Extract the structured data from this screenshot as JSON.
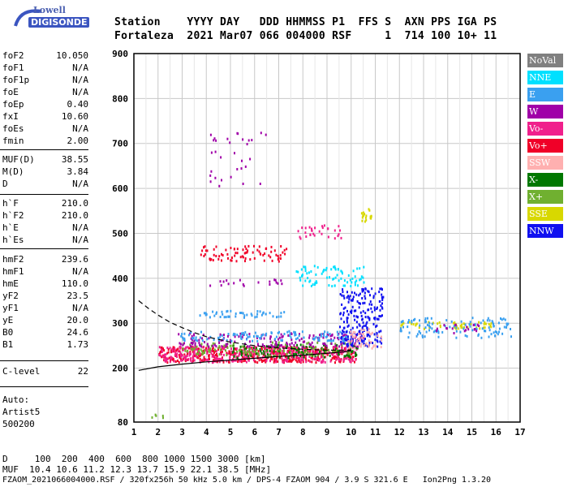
{
  "logo": {
    "top": "Lowell",
    "bottom": "DIGISONDE"
  },
  "header": {
    "line1": "Station    YYYY DAY   DDD HHMMSS P1  FFS S  AXN PPS IGA PS",
    "line2": "Fortaleza  2021 Mar07 066 004000 RSF     1  714 100 10+ 11"
  },
  "params": [
    {
      "name": "foF2",
      "value": "10.050"
    },
    {
      "name": "foF1",
      "value": "N/A"
    },
    {
      "name": "foF1p",
      "value": "N/A"
    },
    {
      "name": "foE",
      "value": "N/A"
    },
    {
      "name": "foEp",
      "value": "0.40"
    },
    {
      "name": "fxI",
      "value": "10.60"
    },
    {
      "name": "foEs",
      "value": "N/A"
    },
    {
      "name": "fmin",
      "value": "2.00"
    },
    {
      "name": "MUF(D)",
      "value": "38.55"
    },
    {
      "name": "M(D)",
      "value": "3.84"
    },
    {
      "name": "D",
      "value": "N/A"
    },
    {
      "name": "h`F",
      "value": "210.0"
    },
    {
      "name": "h`F2",
      "value": "210.0"
    },
    {
      "name": "h`E",
      "value": "N/A"
    },
    {
      "name": "h`Es",
      "value": "N/A"
    },
    {
      "name": "hmF2",
      "value": "239.6"
    },
    {
      "name": "hmF1",
      "value": "N/A"
    },
    {
      "name": "hmE",
      "value": "110.0"
    },
    {
      "name": "yF2",
      "value": "23.5"
    },
    {
      "name": "yF1",
      "value": "N/A"
    },
    {
      "name": "yE",
      "value": "20.0"
    },
    {
      "name": "B0",
      "value": "24.6"
    },
    {
      "name": "B1",
      "value": "1.73"
    },
    {
      "name": "C-level",
      "value": "22"
    }
  ],
  "auto": {
    "line1": "Auto:",
    "line2": "Artist5",
    "line3": "500200"
  },
  "legend": [
    {
      "label": "NoVal",
      "color": "#808080"
    },
    {
      "label": "NNE",
      "color": "#00e0ff"
    },
    {
      "label": "E",
      "color": "#3aa0f0"
    },
    {
      "label": "W",
      "color": "#a000a8"
    },
    {
      "label": "Vo-",
      "color": "#f0208c"
    },
    {
      "label": "Vo+",
      "color": "#f00028"
    },
    {
      "label": "SSW",
      "color": "#ffb0b0"
    },
    {
      "label": "X-",
      "color": "#007800"
    },
    {
      "label": "X+",
      "color": "#70b030"
    },
    {
      "label": "SSE",
      "color": "#d8d800"
    },
    {
      "label": "NNW",
      "color": "#1010f0"
    }
  ],
  "footer": {
    "d_row": "D     100  200  400  600  800 1000 1500 3000 [km]",
    "muf_row": "MUF  10.4 10.6 11.2 12.3 13.7 15.9 22.1 38.5 [MHz]",
    "file_row": "FZAOM_2021066004000.RSF / 320fx256h 50 kHz 5.0 km / DPS-4 FZAOM 904 / 3.9 S 321.6 E   Ion2Png 1.3.20"
  },
  "chart_data": {
    "type": "scatter",
    "title": "",
    "xlabel": "",
    "ylabel": "",
    "xlim": [
      1,
      17
    ],
    "ylim": [
      80,
      900
    ],
    "x_ticks": [
      1,
      2,
      3,
      4,
      5,
      6,
      7,
      8,
      9,
      10,
      11,
      12,
      13,
      14,
      15,
      16,
      17
    ],
    "y_ticks": [
      80,
      200,
      300,
      400,
      500,
      600,
      700,
      800,
      900
    ],
    "grid": true,
    "legend_position": "right",
    "clusters": [
      {
        "series": "Vo+",
        "x_range": [
          2.0,
          10.2
        ],
        "h_range": [
          215,
          250
        ],
        "density": 0.9
      },
      {
        "series": "Vo-",
        "x_range": [
          2.0,
          10.2
        ],
        "h_range": [
          215,
          250
        ],
        "density": 0.7
      },
      {
        "series": "X-",
        "x_range": [
          5.0,
          10.3
        ],
        "h_range": [
          225,
          255
        ],
        "density": 0.4
      },
      {
        "series": "X+",
        "x_range": [
          3.0,
          10.0
        ],
        "h_range": [
          230,
          260
        ],
        "density": 0.3
      },
      {
        "series": "W",
        "x_range": [
          2.8,
          10.5
        ],
        "h_range": [
          250,
          280
        ],
        "density": 0.4
      },
      {
        "series": "E",
        "x_range": [
          2.8,
          10.0
        ],
        "h_range": [
          262,
          285
        ],
        "density": 0.4
      },
      {
        "series": "NNW",
        "x_range": [
          9.5,
          11.3
        ],
        "h_range": [
          250,
          380
        ],
        "density": 0.5
      },
      {
        "series": "SSW",
        "x_range": [
          9.8,
          11.3
        ],
        "h_range": [
          245,
          290
        ],
        "density": 0.4
      },
      {
        "series": "E",
        "x_range": [
          3.7,
          7.2
        ],
        "h_range": [
          315,
          330
        ],
        "density": 0.5
      },
      {
        "series": "NNE",
        "x_range": [
          7.7,
          10.5
        ],
        "h_range": [
          385,
          430
        ],
        "density": 0.35
      },
      {
        "series": "W",
        "x_range": [
          3.7,
          7.2
        ],
        "h_range": [
          385,
          400
        ],
        "density": 0.2
      },
      {
        "series": "Vo+",
        "x_range": [
          3.7,
          7.3
        ],
        "h_range": [
          440,
          475
        ],
        "density": 0.35
      },
      {
        "series": "Vo-",
        "x_range": [
          7.7,
          9.6
        ],
        "h_range": [
          490,
          520
        ],
        "density": 0.3
      },
      {
        "series": "SSE",
        "x_range": [
          10.4,
          10.9
        ],
        "h_range": [
          525,
          560
        ],
        "density": 0.6
      },
      {
        "series": "W",
        "x_range": [
          4.0,
          6.5
        ],
        "h_range": [
          600,
          740
        ],
        "density": 0.05
      },
      {
        "series": "SSE",
        "x_range": [
          12.0,
          15.8
        ],
        "h_range": [
          290,
          305
        ],
        "density": 0.5
      },
      {
        "series": "E",
        "x_range": [
          12.0,
          16.6
        ],
        "h_range": [
          270,
          315
        ],
        "density": 0.3
      },
      {
        "series": "W",
        "x_range": [
          13.5,
          15.3
        ],
        "h_range": [
          280,
          300
        ],
        "density": 0.3
      },
      {
        "series": "X+",
        "x_range": [
          1.7,
          2.2
        ],
        "h_range": [
          92,
          102
        ],
        "density": 0.6
      }
    ],
    "traces": [
      {
        "name": "model-solid",
        "style": "solid",
        "x": [
          1.2,
          2,
          3,
          4,
          5,
          6,
          7,
          8,
          9,
          9.8,
          10.0
        ],
        "y": [
          195,
          203,
          209,
          214,
          218,
          222,
          226,
          229,
          233,
          237,
          239
        ]
      },
      {
        "name": "model-dashed",
        "style": "dashed",
        "x": [
          1.2,
          1.6,
          2,
          2.5,
          3,
          3.5,
          4,
          5,
          6,
          7,
          8,
          9,
          10
        ],
        "y": [
          350,
          333,
          318,
          302,
          290,
          279,
          270,
          258,
          250,
          245,
          242,
          240,
          240
        ]
      }
    ]
  }
}
